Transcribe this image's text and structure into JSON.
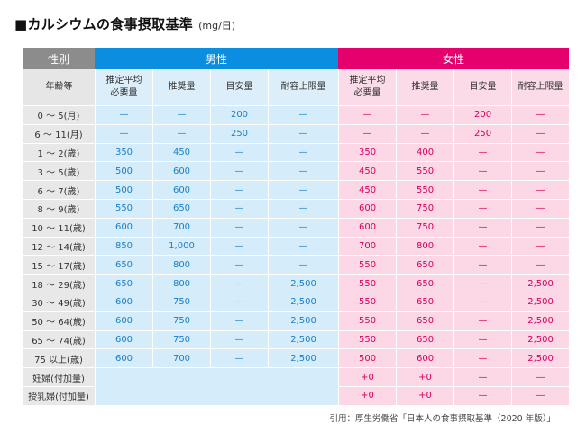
{
  "title": "■カルシウムの食事摂取基準",
  "unit": "(mg/日)",
  "header": {
    "sex_label": "性別",
    "male": "男性",
    "female": "女性",
    "age_label": "年齢等",
    "columns": [
      "推定平均\n必要量",
      "推奨量",
      "目安量",
      "耐容上限量"
    ]
  },
  "rows": [
    {
      "age": "0 ～ 5(月)",
      "male": [
        "—",
        "—",
        "200",
        "—"
      ],
      "female": [
        "—",
        "—",
        "200",
        "—"
      ]
    },
    {
      "age": "6 ～ 11(月)",
      "male": [
        "—",
        "—",
        "250",
        "—"
      ],
      "female": [
        "—",
        "—",
        "250",
        "—"
      ]
    },
    {
      "age": "1 ～ 2(歳)",
      "male": [
        "350",
        "450",
        "—",
        "—"
      ],
      "female": [
        "350",
        "400",
        "—",
        "—"
      ]
    },
    {
      "age": "3 ～ 5(歳)",
      "male": [
        "500",
        "600",
        "—",
        "—"
      ],
      "female": [
        "450",
        "550",
        "—",
        "—"
      ]
    },
    {
      "age": "6 ～ 7(歳)",
      "male": [
        "500",
        "600",
        "—",
        "—"
      ],
      "female": [
        "450",
        "550",
        "—",
        "—"
      ]
    },
    {
      "age": "8 ～ 9(歳)",
      "male": [
        "550",
        "650",
        "—",
        "—"
      ],
      "female": [
        "600",
        "750",
        "—",
        "—"
      ]
    },
    {
      "age": "10 ～ 11(歳)",
      "male": [
        "600",
        "700",
        "—",
        "—"
      ],
      "female": [
        "600",
        "750",
        "—",
        "—"
      ]
    },
    {
      "age": "12 ～ 14(歳)",
      "male": [
        "850",
        "1,000",
        "—",
        "—"
      ],
      "female": [
        "700",
        "800",
        "—",
        "—"
      ]
    },
    {
      "age": "15 ～ 17(歳)",
      "male": [
        "650",
        "800",
        "—",
        "—"
      ],
      "female": [
        "550",
        "650",
        "—",
        "—"
      ]
    },
    {
      "age": "18 ～ 29(歳)",
      "male": [
        "650",
        "800",
        "—",
        "2,500"
      ],
      "female": [
        "550",
        "650",
        "—",
        "2,500"
      ]
    },
    {
      "age": "30 ～ 49(歳)",
      "male": [
        "600",
        "750",
        "—",
        "2,500"
      ],
      "female": [
        "550",
        "650",
        "—",
        "2,500"
      ]
    },
    {
      "age": "50 ～ 64(歳)",
      "male": [
        "600",
        "750",
        "—",
        "2,500"
      ],
      "female": [
        "550",
        "650",
        "—",
        "2,500"
      ]
    },
    {
      "age": "65 ～ 74(歳)",
      "male": [
        "600",
        "750",
        "—",
        "2,500"
      ],
      "female": [
        "550",
        "650",
        "—",
        "2,500"
      ]
    },
    {
      "age": "75 以上(歳)",
      "male": [
        "600",
        "700",
        "—",
        "2,500"
      ],
      "female": [
        "500",
        "600",
        "—",
        "2,500"
      ]
    },
    {
      "age": "妊婦(付加量)",
      "male": [
        "",
        "",
        "",
        ""
      ],
      "female": [
        "+0",
        "+0",
        "—",
        "—"
      ]
    },
    {
      "age": "授乳婦(付加量)",
      "male": [
        "",
        "",
        "",
        ""
      ],
      "female": [
        "+0",
        "+0",
        "—",
        "—"
      ]
    }
  ],
  "colors": {
    "male": "#0b8de0",
    "female": "#e5006e",
    "male_bg": "#d5ecfa",
    "female_bg": "#fcd7e5"
  },
  "citation": "引用：厚生労働省「日本人の食事摂取基準（2020 年版）」"
}
